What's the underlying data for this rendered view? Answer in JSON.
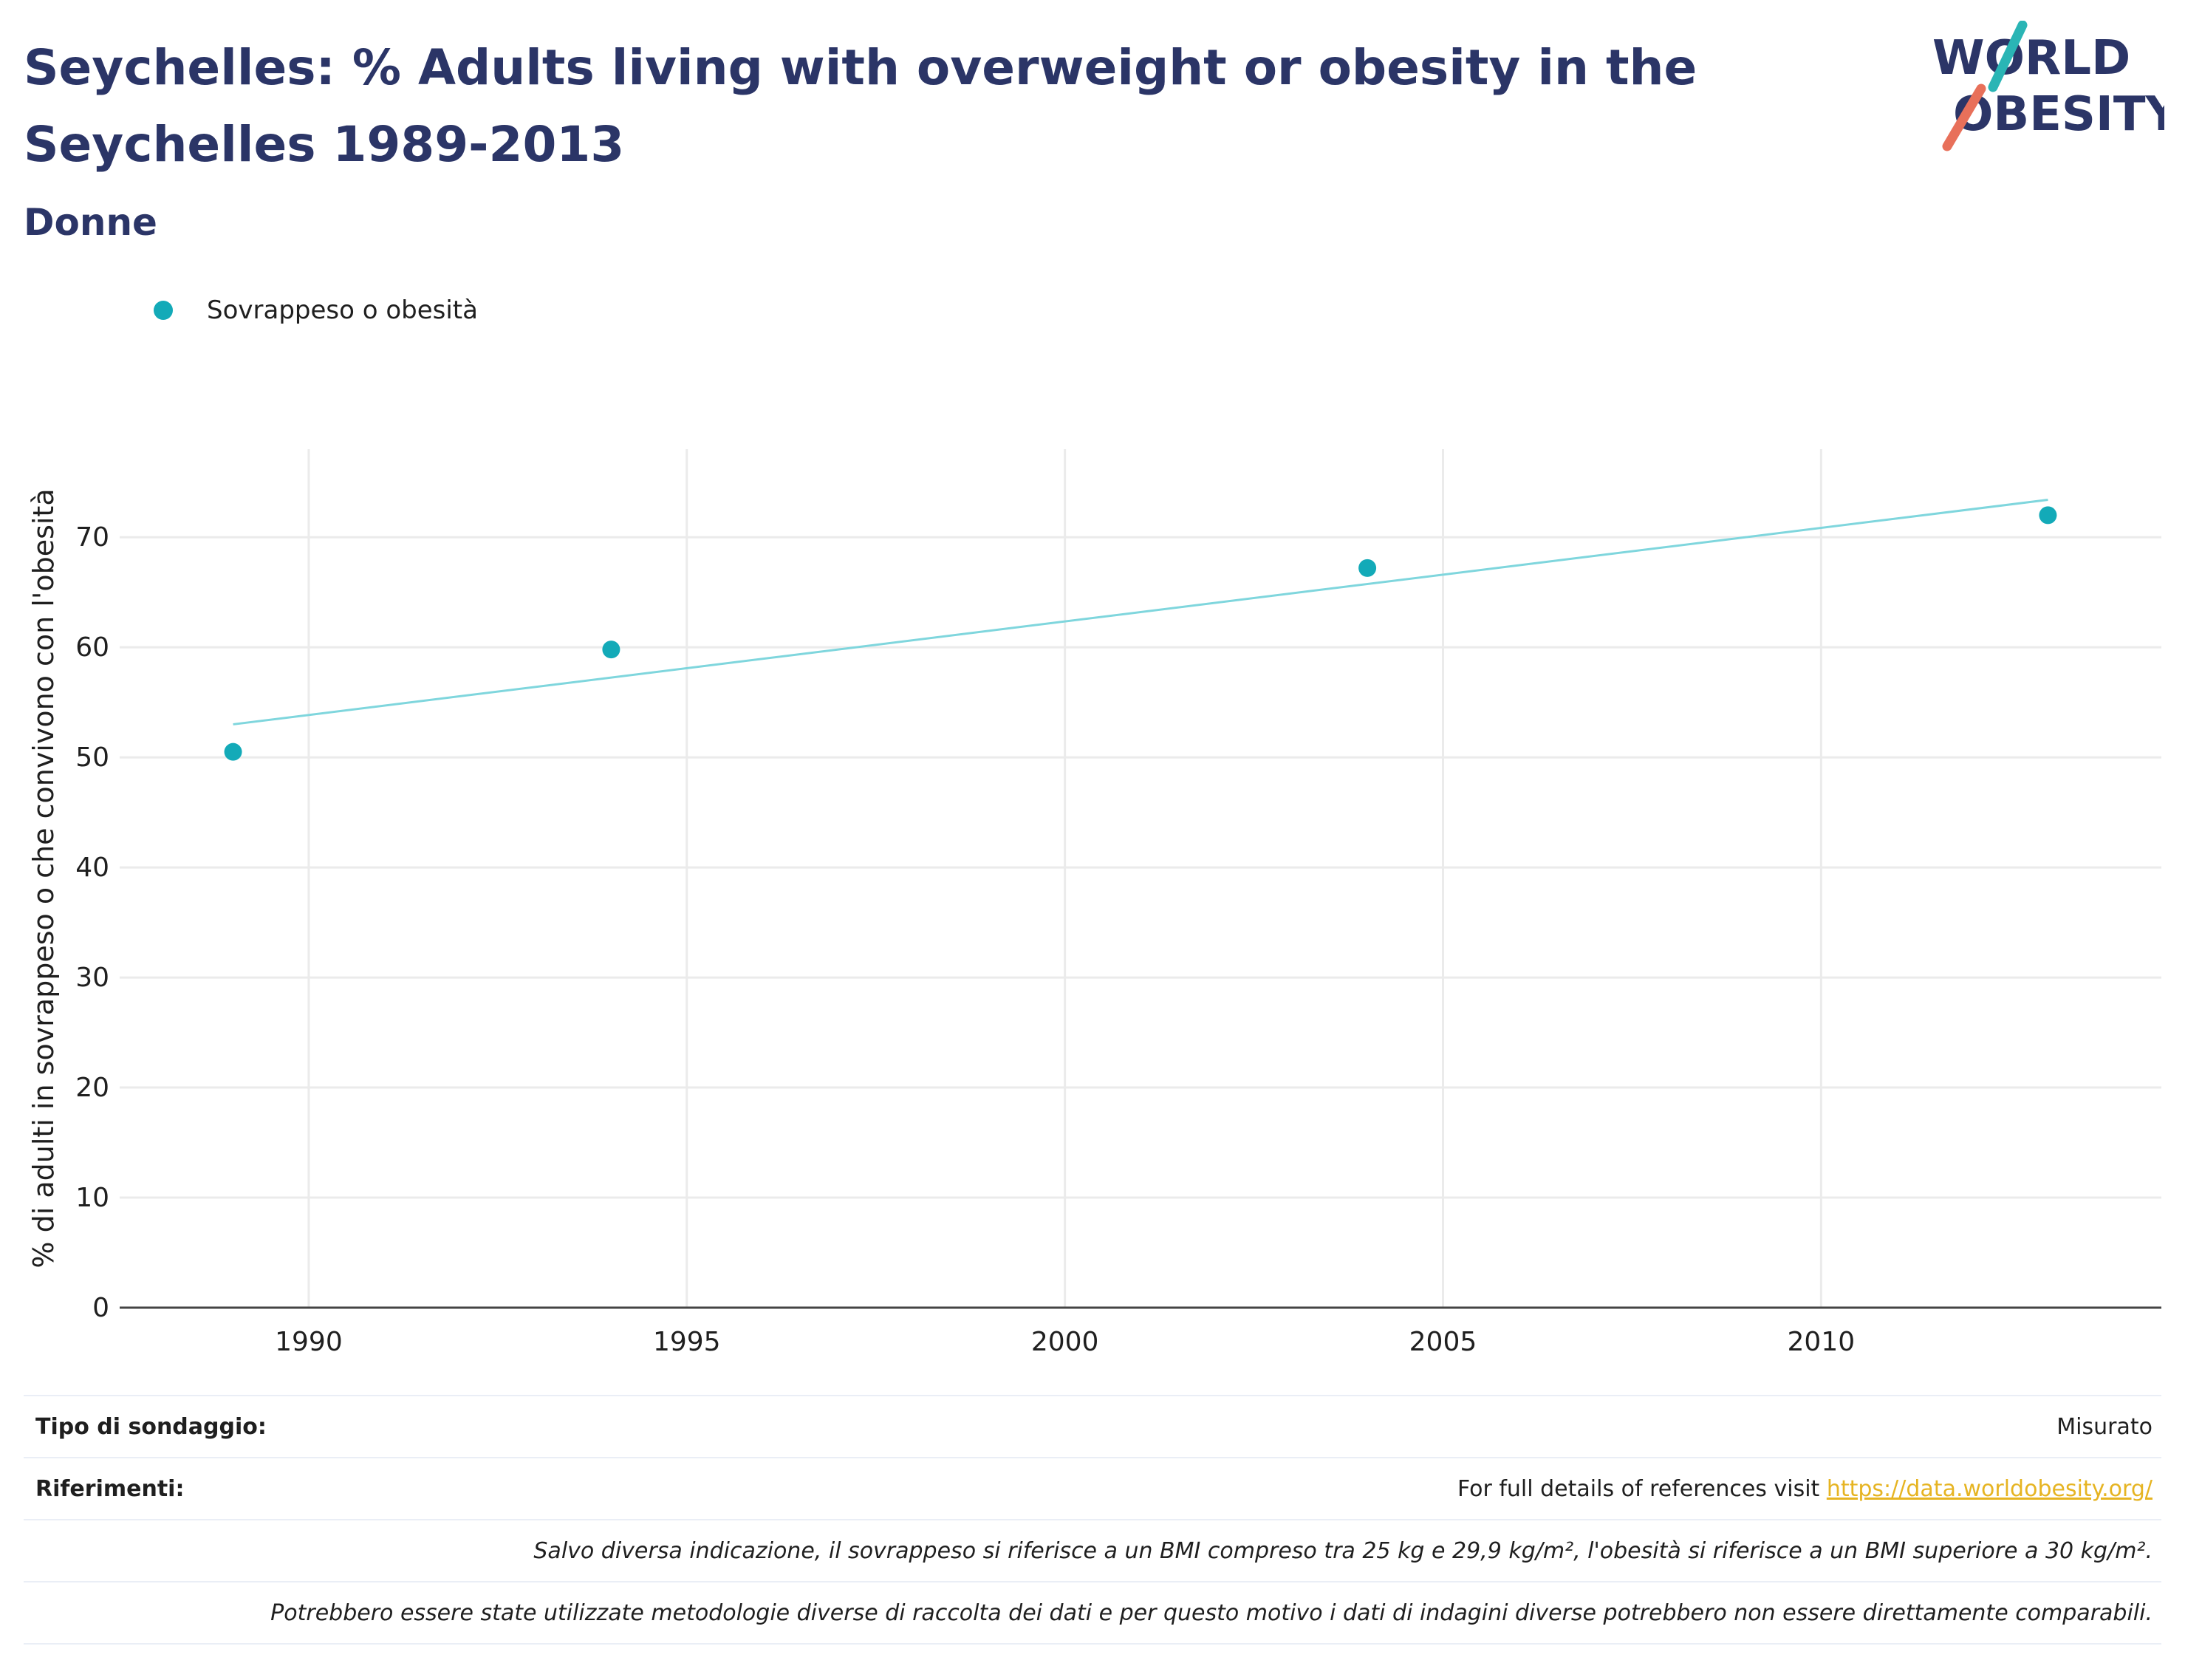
{
  "header": {
    "title": "Seychelles: % Adults living with overweight or obesity in the Seychelles 1989-2013",
    "subtitle": "Donne"
  },
  "logo": {
    "line1": "WORLD",
    "line2": "OBESITY"
  },
  "colors": {
    "title": "#2b3567",
    "series": "#13aab8",
    "trend": "#7fd6dd",
    "link": "#e6b422"
  },
  "chart_data": {
    "type": "scatter",
    "title": "Seychelles: % Adults living with overweight or obesity in the Seychelles 1989-2013",
    "subtitle": "Donne",
    "ylabel": "% di adulti in sovrappeso o che convivono con l'obesità",
    "xlabel": "",
    "xlim": [
      1987.5,
      2014.5
    ],
    "ylim": [
      0,
      78
    ],
    "xticks": [
      1990,
      1995,
      2000,
      2005,
      2010
    ],
    "yticks": [
      0,
      10,
      20,
      30,
      40,
      50,
      60,
      70
    ],
    "grid": true,
    "legend": "top-left",
    "series": [
      {
        "name": "Sovrappeso o obesità",
        "x": [
          1989,
          1994,
          2004,
          2013
        ],
        "y": [
          50.5,
          59.8,
          67.2,
          72.0
        ]
      }
    ],
    "trendline": {
      "x": [
        1989,
        2013
      ],
      "y": [
        53.0,
        73.4
      ]
    }
  },
  "footer": {
    "survey_type_label": "Tipo di sondaggio:",
    "survey_type_value": "Misurato",
    "references_label": "Riferimenti:",
    "references_text": "For full details of references visit ",
    "references_link": "https://data.worldobesity.org/",
    "note_bmi": "Salvo diversa indicazione, il sovrappeso si riferisce a un BMI compreso tra 25 kg e 29,9 kg/m², l'obesità si riferisce a un BMI superiore a 30 kg/m².",
    "note_methods": "Potrebbero essere state utilizzate metodologie diverse di raccolta dei dati e per questo motivo i dati di indagini diverse potrebbero non essere direttamente comparabili."
  }
}
